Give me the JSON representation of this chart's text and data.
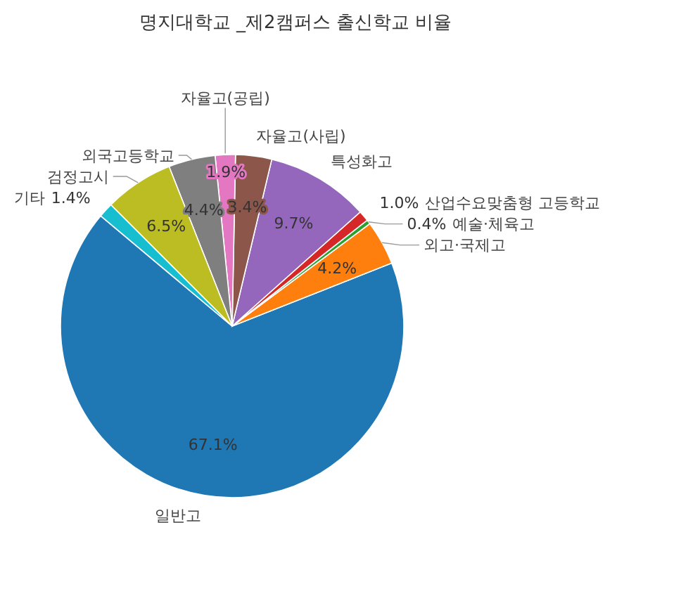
{
  "chart_data": {
    "type": "pie",
    "title": "명지대학교 _제2캠퍼스 출신학교 비율",
    "categories": [
      "일반고",
      "외고·국제고",
      "예술·체육고",
      "산업수요맞춤형 고등학교",
      "특성화고",
      "자율고(사립)",
      "자율고(공립)",
      "외국고등학교",
      "검정고시",
      "기타"
    ],
    "values": [
      67.1,
      4.2,
      0.4,
      1.0,
      9.7,
      3.4,
      1.9,
      4.4,
      6.5,
      1.4
    ],
    "value_labels": [
      "67.1%",
      "4.2%",
      "0.4%",
      "1.0%",
      "9.7%",
      "3.4%",
      "1.9%",
      "4.4%",
      "6.5%",
      "1.4%"
    ],
    "colors": [
      "#1f77b4",
      "#ff7f0e",
      "#2ca02c",
      "#d62728",
      "#9467bd",
      "#8c564b",
      "#e377c2",
      "#7f7f7f",
      "#bcbd22",
      "#17becf"
    ]
  }
}
